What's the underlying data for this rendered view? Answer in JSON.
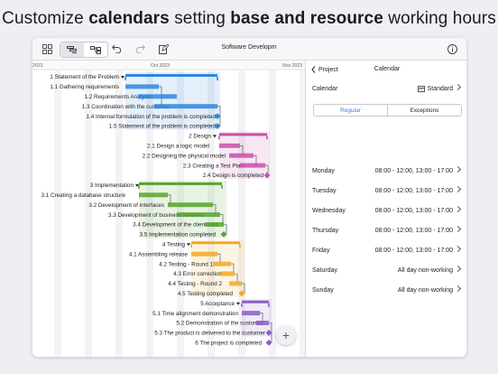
{
  "headline": {
    "p1": "Customize ",
    "b1": "calendars",
    "p2": " setting ",
    "b2": "base and resource",
    "p3": " working hours"
  },
  "toolbar": {
    "title": "Software Developm"
  },
  "timeline": {
    "months": [
      "2023",
      "Oct 2023",
      "Nov 2023"
    ]
  },
  "tasks": [
    {
      "label": "1 Statement of the Problem",
      "level": 0,
      "color": "#2e86de",
      "summary": true
    },
    {
      "label": "1.1 Gathering requirements",
      "level": 1,
      "color": "#2e86de"
    },
    {
      "label": "1.2 Requirements Analysis",
      "level": 1,
      "color": "#2e86de"
    },
    {
      "label": "1.3 Coordination with the customer",
      "level": 1,
      "color": "#2e86de"
    },
    {
      "label": "1.4 Internal formulation of the problem is completed",
      "level": 1,
      "color": "#2e86de",
      "milestone": true
    },
    {
      "label": "1.5 Statement of the problem is completed",
      "level": 1,
      "color": "#2e86de",
      "milestone": true
    },
    {
      "label": "2 Design",
      "level": 0,
      "color": "#c84fa8",
      "summary": true
    },
    {
      "label": "2.1 Design a logic model",
      "level": 1,
      "color": "#c84fa8"
    },
    {
      "label": "2.2 Designing the physical model",
      "level": 1,
      "color": "#c84fa8"
    },
    {
      "label": "2.3 Creating a Test Plan",
      "level": 1,
      "color": "#c84fa8"
    },
    {
      "label": "2.4 Design is completed",
      "level": 1,
      "color": "#c84fa8",
      "milestone": true
    },
    {
      "label": "3 Implementation",
      "level": 0,
      "color": "#56a52c",
      "summary": true
    },
    {
      "label": "3.1 Creating a database structure",
      "level": 1,
      "color": "#56a52c"
    },
    {
      "label": "3.2 Development of interfaces",
      "level": 1,
      "color": "#56a52c"
    },
    {
      "label": "3.3 Development of business services",
      "level": 1,
      "color": "#56a52c"
    },
    {
      "label": "3.4 Development of the client side",
      "level": 1,
      "color": "#56a52c"
    },
    {
      "label": "3.5 Implementation completed",
      "level": 1,
      "color": "#56a52c",
      "milestone": true
    },
    {
      "label": "4 Testing",
      "level": 0,
      "color": "#f0a928",
      "summary": true
    },
    {
      "label": "4.1 Assembling release",
      "level": 1,
      "color": "#f0a928"
    },
    {
      "label": "4.2 Testing - Round 1",
      "level": 1,
      "color": "#f0a928"
    },
    {
      "label": "4.3 Error correction",
      "level": 1,
      "color": "#f0a928"
    },
    {
      "label": "4.4 Testing - Round 2",
      "level": 1,
      "color": "#f0a928"
    },
    {
      "label": "4.5 Testing completed",
      "level": 1,
      "color": "#f0a928",
      "milestone": true
    },
    {
      "label": "5 Acceptance",
      "level": 0,
      "color": "#8b5cc7",
      "summary": true
    },
    {
      "label": "5.1 Time alignment demonstration",
      "level": 1,
      "color": "#8b5cc7"
    },
    {
      "label": "5.2 Demonstration of the customer",
      "level": 1,
      "color": "#8b5cc7"
    },
    {
      "label": "5.3 The product is delivered to the customer",
      "level": 1,
      "color": "#8b5cc7",
      "milestone": true
    },
    {
      "label": "6 The project is completed",
      "level": 0,
      "color": "#8b5cc7",
      "milestone": true
    }
  ],
  "panel": {
    "back_label": "Project",
    "title": "Calendar",
    "calendar_label": "Calendar",
    "calendar_value": "Standard",
    "tab_regular": "Regular",
    "tab_exceptions": "Exceptions",
    "days": [
      {
        "day": "Monday",
        "hours": "08:00 - 12:00, 13:00 - 17:00"
      },
      {
        "day": "Tuesday",
        "hours": "08:00 - 12:00, 13:00 - 17:00"
      },
      {
        "day": "Wednesday",
        "hours": "08:00 - 12:00, 13:00 - 17:00"
      },
      {
        "day": "Thursday",
        "hours": "08:00 - 12:00, 13:00 - 17:00"
      },
      {
        "day": "Friday",
        "hours": "08:00 - 12:00, 13:00 - 17:00"
      },
      {
        "day": "Saturday",
        "hours": "All day non-working"
      },
      {
        "day": "Sunday",
        "hours": "All day non-working"
      }
    ]
  },
  "fab_label": "+",
  "colors": {
    "accent": "#3b7ddd"
  }
}
